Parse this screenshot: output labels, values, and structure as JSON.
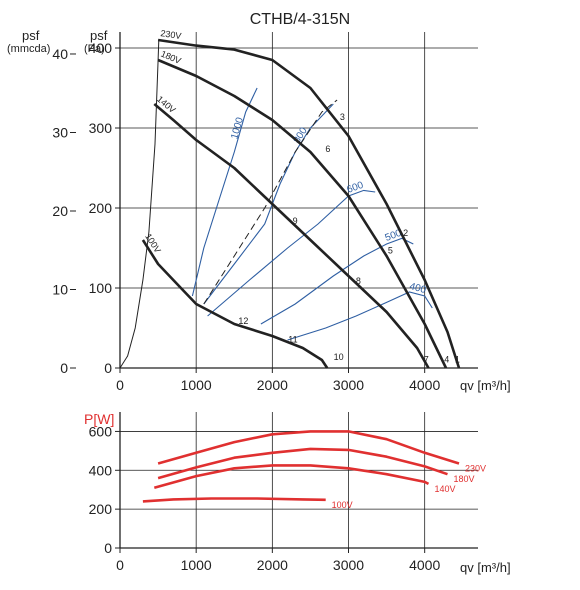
{
  "chart_data": [
    {
      "type": "line",
      "title": "CTHB/4-315N",
      "xlabel": "qv [m³/h]",
      "ylabel_left": "psf (mmcda)",
      "ylabel_right": "psf (Pa)",
      "xlim": [
        0,
        4700
      ],
      "ylim": [
        0,
        420
      ],
      "ylim_secondary": [
        0,
        42.8
      ],
      "x_ticks": [
        0,
        1000,
        2000,
        3000,
        4000
      ],
      "y_ticks": [
        0,
        100,
        200,
        300,
        400
      ],
      "y_ticks_secondary": [
        0,
        10,
        20,
        30,
        40
      ],
      "grid": true,
      "fan_curves": [
        {
          "name": "230V",
          "points": [
            [
              500,
              410
            ],
            [
              1000,
              403
            ],
            [
              1500,
              398
            ],
            [
              2000,
              385
            ],
            [
              2500,
              350
            ],
            [
              3000,
              290
            ],
            [
              3500,
              205
            ],
            [
              4000,
              110
            ],
            [
              4300,
              45
            ],
            [
              4450,
              0
            ]
          ]
        },
        {
          "name": "180V",
          "points": [
            [
              500,
              385
            ],
            [
              1000,
              365
            ],
            [
              1500,
              340
            ],
            [
              2000,
              310
            ],
            [
              2500,
              270
            ],
            [
              3000,
              215
            ],
            [
              3500,
              140
            ],
            [
              4000,
              55
            ],
            [
              4280,
              0
            ]
          ]
        },
        {
          "name": "140V",
          "points": [
            [
              450,
              330
            ],
            [
              700,
              310
            ],
            [
              1000,
              285
            ],
            [
              1500,
              250
            ],
            [
              2000,
              205
            ],
            [
              2500,
              160
            ],
            [
              3000,
              115
            ],
            [
              3500,
              70
            ],
            [
              3900,
              25
            ],
            [
              4050,
              0
            ]
          ]
        },
        {
          "name": "100V",
          "points": [
            [
              300,
              160
            ],
            [
              500,
              130
            ],
            [
              800,
              100
            ],
            [
              1000,
              80
            ],
            [
              1500,
              55
            ],
            [
              2000,
              40
            ],
            [
              2400,
              25
            ],
            [
              2650,
              10
            ],
            [
              2720,
              0
            ]
          ]
        }
      ],
      "system_curve": [
        [
          0,
          0
        ],
        [
          100,
          15
        ],
        [
          200,
          50
        ],
        [
          300,
          110
        ],
        [
          380,
          170
        ],
        [
          460,
          280
        ],
        [
          500,
          385
        ],
        [
          510,
          410
        ]
      ],
      "rpm_curves": [
        {
          "label": "1000",
          "points": [
            [
              950,
              90
            ],
            [
              1100,
              150
            ],
            [
              1300,
              210
            ],
            [
              1500,
              270
            ],
            [
              1650,
              320
            ],
            [
              1800,
              350
            ]
          ]
        },
        {
          "label": "800",
          "points": [
            [
              1100,
              80
            ],
            [
              1500,
              130
            ],
            [
              1900,
              180
            ],
            [
              2100,
              230
            ],
            [
              2300,
              270
            ],
            [
              2500,
              300
            ],
            [
              2700,
              320
            ],
            [
              2800,
              330
            ]
          ]
        },
        {
          "label": "600",
          "points": [
            [
              1150,
              65
            ],
            [
              1700,
              110
            ],
            [
              2200,
              150
            ],
            [
              2600,
              180
            ],
            [
              3000,
              215
            ],
            [
              3200,
              222
            ],
            [
              3350,
              220
            ]
          ]
        },
        {
          "label": "500",
          "points": [
            [
              1850,
              55
            ],
            [
              2300,
              80
            ],
            [
              2800,
              115
            ],
            [
              3200,
              140
            ],
            [
              3500,
              155
            ],
            [
              3700,
              162
            ],
            [
              3850,
              155
            ]
          ]
        },
        {
          "label": "400",
          "points": [
            [
              2200,
              35
            ],
            [
              2700,
              50
            ],
            [
              3100,
              65
            ],
            [
              3500,
              82
            ],
            [
              3800,
              95
            ],
            [
              4000,
              90
            ],
            [
              4100,
              75
            ]
          ]
        }
      ],
      "rpm_dash": [
        [
          1100,
          80
        ],
        [
          1500,
          140
        ],
        [
          1900,
          200
        ],
        [
          2300,
          270
        ],
        [
          2650,
          320
        ],
        [
          2850,
          335
        ]
      ],
      "point_labels": [
        {
          "text": "1",
          "x": 4430,
          "y": 7
        },
        {
          "text": "2",
          "x": 3750,
          "y": 165
        },
        {
          "text": "3",
          "x": 2920,
          "y": 310
        },
        {
          "text": "4",
          "x": 4290,
          "y": 7
        },
        {
          "text": "5",
          "x": 3550,
          "y": 143
        },
        {
          "text": "6",
          "x": 2730,
          "y": 270
        },
        {
          "text": "7",
          "x": 4020,
          "y": 7
        },
        {
          "text": "8",
          "x": 3130,
          "y": 105
        },
        {
          "text": "9",
          "x": 2300,
          "y": 180
        },
        {
          "text": "10",
          "x": 2870,
          "y": 10
        },
        {
          "text": "11",
          "x": 2270,
          "y": 32
        },
        {
          "text": "12",
          "x": 1620,
          "y": 55
        }
      ]
    },
    {
      "type": "line",
      "ylabel": "P[W]",
      "xlabel": "qv [m³/h]",
      "xlim": [
        0,
        4700
      ],
      "ylim": [
        0,
        700
      ],
      "x_ticks": [
        0,
        1000,
        2000,
        3000,
        4000
      ],
      "y_ticks": [
        0,
        200,
        400,
        600
      ],
      "grid": true,
      "series": [
        {
          "name": "230V",
          "points": [
            [
              500,
              435
            ],
            [
              1000,
              490
            ],
            [
              1500,
              545
            ],
            [
              2000,
              585
            ],
            [
              2500,
              600
            ],
            [
              3000,
              600
            ],
            [
              3500,
              560
            ],
            [
              4000,
              490
            ],
            [
              4450,
              435
            ]
          ]
        },
        {
          "name": "180V",
          "points": [
            [
              500,
              360
            ],
            [
              1000,
              415
            ],
            [
              1500,
              465
            ],
            [
              2000,
              490
            ],
            [
              2500,
              510
            ],
            [
              3000,
              505
            ],
            [
              3500,
              470
            ],
            [
              4000,
              420
            ],
            [
              4300,
              380
            ]
          ]
        },
        {
          "name": "140V",
          "points": [
            [
              450,
              310
            ],
            [
              1000,
              370
            ],
            [
              1500,
              410
            ],
            [
              2000,
              425
            ],
            [
              2500,
              425
            ],
            [
              3000,
              410
            ],
            [
              3500,
              380
            ],
            [
              4000,
              340
            ],
            [
              4050,
              330
            ]
          ]
        },
        {
          "name": "100V",
          "points": [
            [
              300,
              240
            ],
            [
              700,
              250
            ],
            [
              1200,
              255
            ],
            [
              1800,
              255
            ],
            [
              2400,
              250
            ],
            [
              2700,
              248
            ]
          ]
        }
      ]
    }
  ],
  "axis_labels": {
    "p_sf_left": "psf",
    "p_sf_left_unit": "(mmcda)",
    "p_sf_right": "psf",
    "p_sf_right_unit": "(Pa)"
  },
  "colors": {
    "axis": "#222222",
    "grid": "#222222",
    "fan_curve": "#222222",
    "rpm_curve": "#2f5fa3",
    "power_curve": "#e03030",
    "power_label": "#e03030",
    "system_curve": "#222222"
  }
}
